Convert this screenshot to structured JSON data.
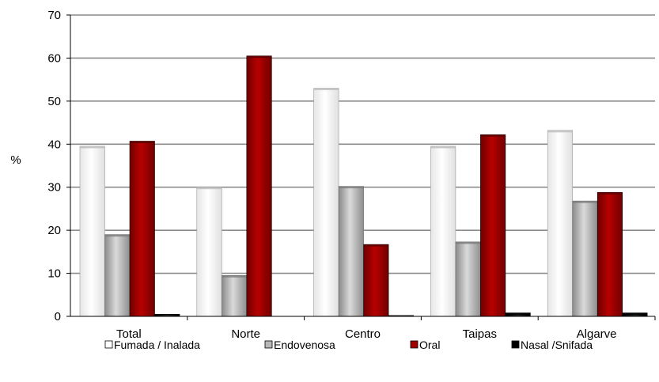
{
  "chart_data": {
    "type": "bar",
    "title": "",
    "xlabel": "",
    "ylabel": "%",
    "ylim": [
      0,
      70
    ],
    "yticks": [
      0,
      10,
      20,
      30,
      40,
      50,
      60,
      70
    ],
    "grid": true,
    "legend_position": "bottom",
    "categories": [
      "Total",
      "Norte",
      "Centro",
      "Taipas",
      "Algarve"
    ],
    "series": [
      {
        "name": "Fumada / Inalada",
        "color": "#ffffff",
        "values": [
          39.5,
          30.0,
          53.0,
          39.5,
          43.2
        ]
      },
      {
        "name": "Endovenosa",
        "color": "#b8b8b8",
        "values": [
          19.0,
          9.5,
          30.2,
          17.3,
          26.8
        ]
      },
      {
        "name": "Oral",
        "color": "#a00000",
        "values": [
          40.7,
          60.5,
          16.7,
          42.2,
          28.8
        ]
      },
      {
        "name": "Nasal /Snifada",
        "color": "#000000",
        "values": [
          0.5,
          0.0,
          0.2,
          0.8,
          0.8
        ]
      }
    ]
  }
}
